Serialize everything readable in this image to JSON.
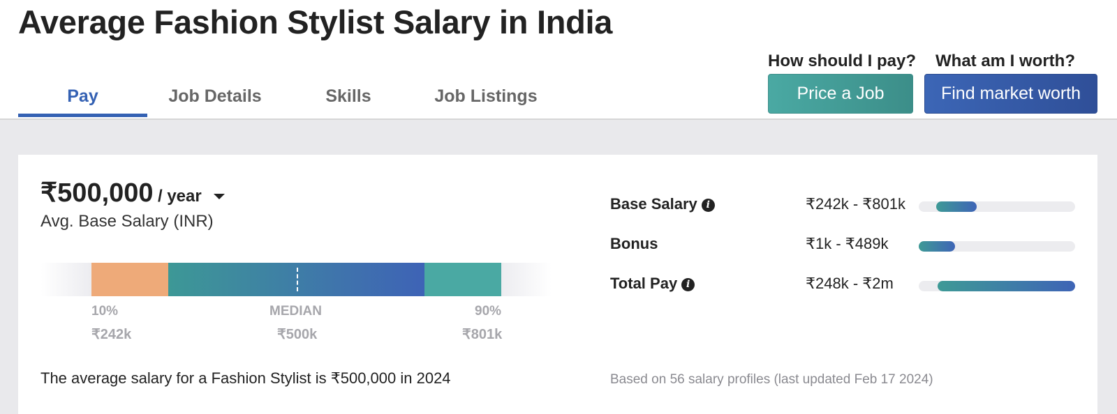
{
  "header": {
    "title": "Average Fashion Stylist Salary in India",
    "tabs": [
      {
        "label": "Pay",
        "active": true
      },
      {
        "label": "Job Details",
        "active": false
      },
      {
        "label": "Skills",
        "active": false
      },
      {
        "label": "Job Listings",
        "active": false
      }
    ],
    "cta": {
      "price_question": "How should I pay?",
      "price_button": "Price a Job",
      "worth_question": "What am I worth?",
      "worth_button": "Find market worth"
    }
  },
  "summary_card": {
    "average_amount": "₹500,000",
    "period": "/ year",
    "average_label": "Avg. Base Salary (INR)",
    "percentiles": [
      {
        "label": "10%",
        "value": "₹242k"
      },
      {
        "label": "MEDIAN",
        "value": "₹500k"
      },
      {
        "label": "90%",
        "value": "₹801k"
      }
    ],
    "summary_text": "The average salary for a Fashion Stylist is ₹500,000 in 2024"
  },
  "compensation": {
    "rows": [
      {
        "label": "Base Salary",
        "range": "₹242k - ₹801k",
        "has_info": true,
        "fill_start": 0.11,
        "fill_end": 0.37
      },
      {
        "label": "Bonus",
        "range": "₹1k - ₹489k",
        "has_info": false,
        "fill_start": 0.0,
        "fill_end": 0.23
      },
      {
        "label": "Total Pay",
        "range": "₹248k - ₹2m",
        "has_info": true,
        "fill_start": 0.12,
        "fill_end": 1.0
      }
    ],
    "based_on": "Based on 56 salary profiles (last updated Feb 17 2024)"
  },
  "colors": {
    "brand_blue": "#3461b3",
    "teal": "#4aa9a3",
    "low_percentile": "#eeaa79",
    "page_bg": "#e9e9ec"
  },
  "icons": {
    "info": "info-icon",
    "period_dropdown": "caret-down-icon"
  }
}
